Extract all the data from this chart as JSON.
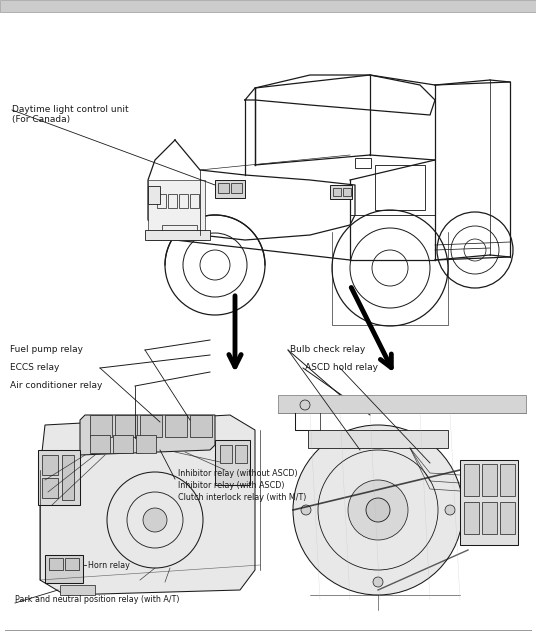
{
  "background_color": "#f5f5f5",
  "border_color": "#888888",
  "line_color": "#1a1a1a",
  "fig_width": 5.36,
  "fig_height": 6.4,
  "dpi": 100,
  "labels": {
    "daytime": "Daytime light control unit\n(For Canada)",
    "fuel_pump": "Fuel pump relay",
    "eccs": "ECCS relay",
    "air_cond": "Air conditioner relay",
    "bulb_check": "Bulb check relay",
    "ascd_hold": "ASCD hold relay",
    "inhibitor1": "Inhibitor relay (without ASCD)",
    "inhibitor2": "Inhibitor relay (with ASCD)",
    "clutch": "Clutch interlock relay (with M/T)",
    "horn": "Horn relay",
    "park": "Park and neutral position relay (with A/T)"
  }
}
